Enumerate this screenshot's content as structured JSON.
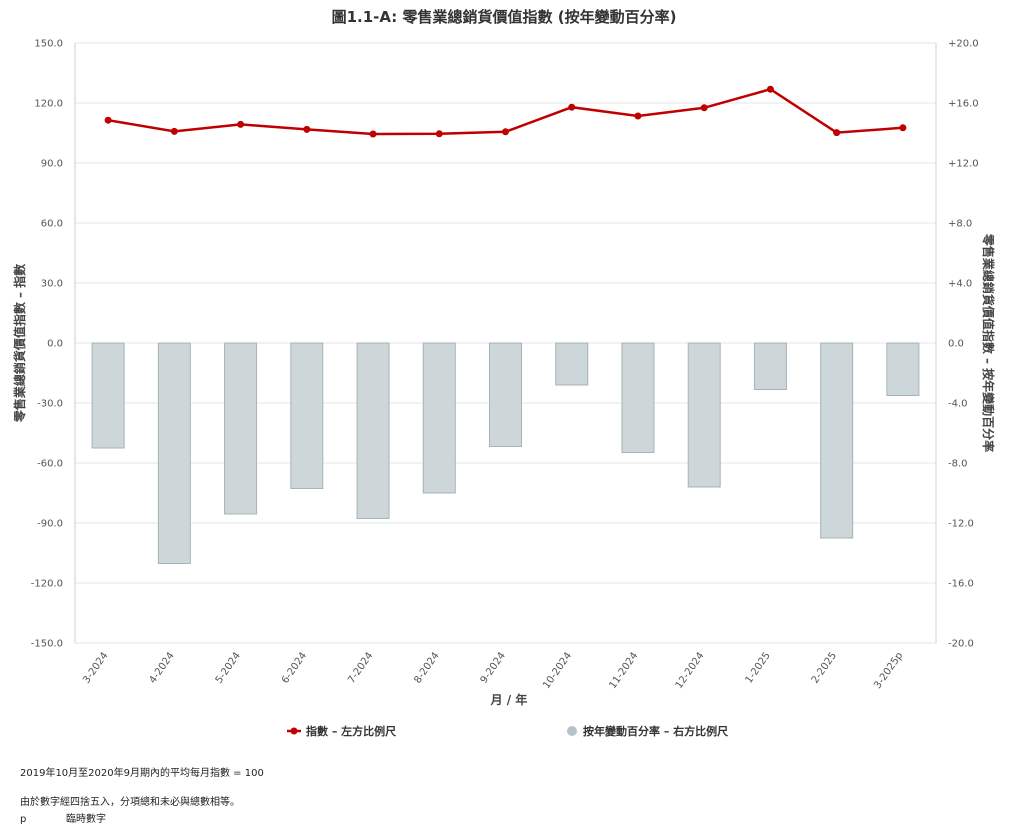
{
  "chart_data": {
    "type": "bar+line",
    "title": "圖1.1-A:  零售業總銷貨價值指數 (按年變動百分率)",
    "xlabel": "月 / 年",
    "ylabel_left": "零售業總銷貨價值指數 – 指數",
    "ylabel_right": "零售業總銷貨價值指數 – 按年變動百分率",
    "categories": [
      "3-2024",
      "4-2024",
      "5-2024",
      "6-2024",
      "7-2024",
      "8-2024",
      "9-2024",
      "10-2024",
      "11-2024",
      "12-2024",
      "1-2025",
      "2-2025",
      "3-2025p"
    ],
    "left_axis": {
      "min": -150,
      "max": 150,
      "ticks": [
        "150.0",
        "120.0",
        "90.0",
        "60.0",
        "30.0",
        "0.0",
        "-30.0",
        "-60.0",
        "-90.0",
        "-120.0",
        "-150.0"
      ]
    },
    "right_axis": {
      "min": -20,
      "max": 20,
      "ticks": [
        "+20.0",
        "+16.0",
        "+12.0",
        "+8.0",
        "+4.0",
        "0.0",
        "-4.0",
        "-8.0",
        "-12.0",
        "-16.0",
        "-20.0"
      ]
    },
    "grid": true,
    "legend_position": "bottom",
    "series": [
      {
        "name": "指數 – 左方比例尺",
        "type": "line",
        "axis": "left",
        "color": "#c00000",
        "values": [
          111.4,
          105.8,
          109.3,
          106.8,
          104.5,
          104.6,
          105.6,
          117.9,
          113.5,
          117.6,
          126.9,
          105.2,
          107.6
        ]
      },
      {
        "name": "按年變動百分率 – 右方比例尺",
        "type": "bar",
        "axis": "right",
        "color": "#cdd6d9",
        "values": [
          -7.0,
          -14.7,
          -11.4,
          -9.7,
          -11.7,
          -10.0,
          -6.9,
          -2.8,
          -7.3,
          -9.6,
          -3.1,
          -13.0,
          -3.5
        ]
      }
    ]
  },
  "notes": {
    "base": "2019年10月至2020年9月期內的平均每月指數 = 100",
    "rounding": "由於數字經四捨五入，分項總和未必與總數相等。",
    "p_key": "p",
    "p_text": "臨時數字"
  }
}
